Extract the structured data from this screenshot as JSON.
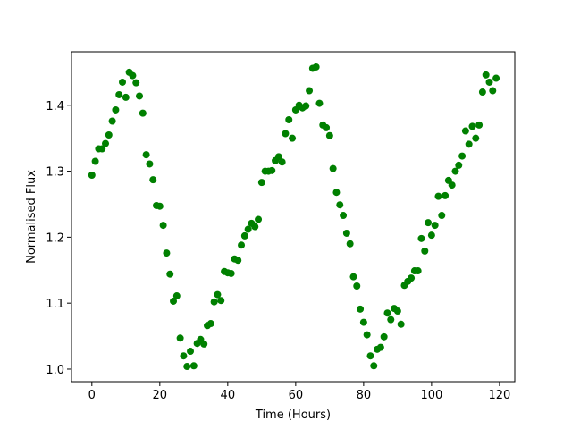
{
  "chart_data": {
    "type": "scatter",
    "x_label": "Time (Hours)",
    "y_label": "Normalised Flux",
    "color": "#008000",
    "x": [
      0,
      1,
      2,
      3,
      4,
      5,
      6,
      7,
      8,
      9,
      10,
      11,
      12,
      13,
      14,
      15,
      16,
      17,
      18,
      19,
      20,
      21,
      22,
      23,
      24,
      25,
      26,
      27,
      28,
      29,
      30,
      31,
      32,
      33,
      34,
      35,
      36,
      37,
      38,
      39,
      40,
      41,
      42,
      43,
      44,
      45,
      46,
      47,
      48,
      49,
      50,
      51,
      52,
      53,
      54,
      55,
      56,
      57,
      58,
      59,
      60,
      61,
      62,
      63,
      64,
      65,
      66,
      67,
      68,
      69,
      70,
      71,
      72,
      73,
      74,
      75,
      76,
      77,
      78,
      79,
      80,
      81,
      82,
      83,
      84,
      85,
      86,
      87,
      88,
      89,
      90,
      91,
      92,
      93,
      94,
      95,
      96,
      97,
      98,
      99,
      100,
      101,
      102,
      103,
      104,
      105,
      106,
      107,
      108,
      109,
      110,
      111,
      112,
      113,
      114,
      115,
      116,
      117,
      118,
      119
    ],
    "y": [
      1.294,
      1.315,
      1.334,
      1.334,
      1.342,
      1.355,
      1.376,
      1.393,
      1.416,
      1.435,
      1.412,
      1.45,
      1.445,
      1.434,
      1.414,
      1.388,
      1.325,
      1.311,
      1.287,
      1.248,
      1.247,
      1.218,
      1.176,
      1.144,
      1.103,
      1.111,
      1.047,
      1.02,
      1.004,
      1.027,
      1.005,
      1.039,
      1.045,
      1.038,
      1.066,
      1.069,
      1.102,
      1.113,
      1.104,
      1.148,
      1.146,
      1.145,
      1.167,
      1.165,
      1.188,
      1.202,
      1.212,
      1.221,
      1.216,
      1.227,
      1.283,
      1.3,
      1.3,
      1.301,
      1.316,
      1.322,
      1.314,
      1.357,
      1.378,
      1.35,
      1.393,
      1.4,
      1.396,
      1.399,
      1.422,
      1.456,
      1.458,
      1.403,
      1.37,
      1.366,
      1.354,
      1.304,
      1.268,
      1.249,
      1.233,
      1.206,
      1.19,
      1.14,
      1.126,
      1.091,
      1.071,
      1.052,
      1.02,
      1.005,
      1.03,
      1.033,
      1.049,
      1.085,
      1.075,
      1.092,
      1.088,
      1.068,
      1.127,
      1.133,
      1.138,
      1.149,
      1.149,
      1.198,
      1.179,
      1.222,
      1.203,
      1.218,
      1.262,
      1.233,
      1.263,
      1.286,
      1.279,
      1.3,
      1.309,
      1.323,
      1.361,
      1.341,
      1.368,
      1.35,
      1.37,
      1.42,
      1.446,
      1.435,
      1.422,
      1.441
    ],
    "xlim": [
      -6,
      124.5
    ],
    "ylim": [
      0.981,
      1.481
    ],
    "xticks": [
      0,
      20,
      40,
      60,
      80,
      100,
      120
    ],
    "yticks": [
      {
        "value": 1,
        "label": "1.0"
      },
      1.1,
      1.2,
      1.3,
      1.4
    ]
  }
}
